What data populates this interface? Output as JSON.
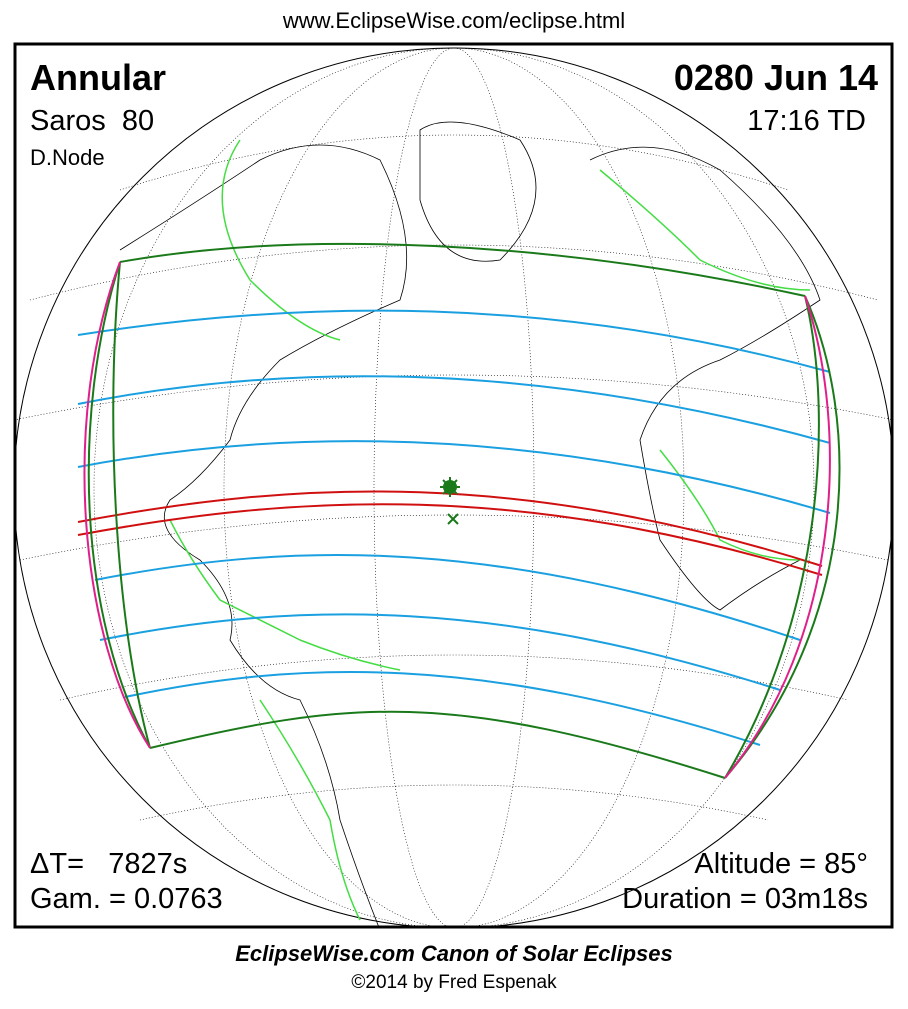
{
  "header": {
    "url": "www.EclipseWise.com/eclipse.html"
  },
  "panel": {
    "top_left": {
      "type": "Annular",
      "saros": "Saros  80",
      "node": "D.Node"
    },
    "top_right": {
      "date": "0280 Jun 14",
      "time": "17:16 TD"
    },
    "bottom_left": {
      "delta_t": "ΔT=   7827s",
      "gamma": "Gam. = 0.0763"
    },
    "bottom_right": {
      "altitude": "Altitude = 85°",
      "duration": "Duration = 03m18s"
    }
  },
  "footer": {
    "title": "EclipseWise.com Canon of Solar Eclipses",
    "copyright": "©2014 by Fred Espenak"
  }
}
